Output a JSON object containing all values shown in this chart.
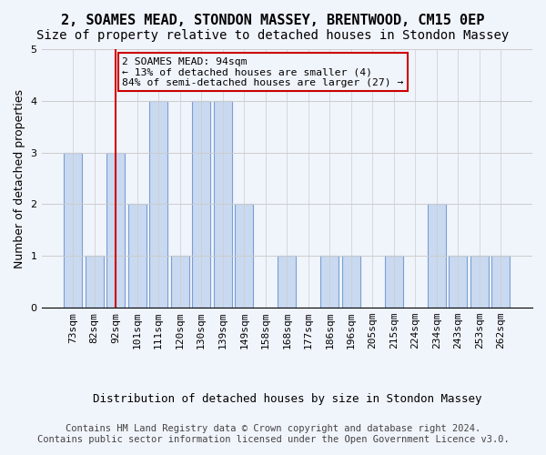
{
  "title1": "2, SOAMES MEAD, STONDON MASSEY, BRENTWOOD, CM15 0EP",
  "title2": "Size of property relative to detached houses in Stondon Massey",
  "xlabel": "Distribution of detached houses by size in Stondon Massey",
  "ylabel": "Number of detached properties",
  "footer1": "Contains HM Land Registry data © Crown copyright and database right 2024.",
  "footer2": "Contains public sector information licensed under the Open Government Licence v3.0.",
  "annotation_line1": "2 SOAMES MEAD: 94sqm",
  "annotation_line2": "← 13% of detached houses are smaller (4)",
  "annotation_line3": "84% of semi-detached houses are larger (27) →",
  "subject_value": 94,
  "categories": [
    "73sqm",
    "82sqm",
    "92sqm",
    "101sqm",
    "111sqm",
    "120sqm",
    "130sqm",
    "139sqm",
    "149sqm",
    "158sqm",
    "168sqm",
    "177sqm",
    "186sqm",
    "196sqm",
    "205sqm",
    "215sqm",
    "224sqm",
    "234sqm",
    "243sqm",
    "253sqm",
    "262sqm"
  ],
  "values": [
    3,
    1,
    3,
    2,
    4,
    1,
    4,
    4,
    2,
    0,
    1,
    0,
    1,
    1,
    0,
    1,
    0,
    2,
    1,
    1,
    1
  ],
  "bar_color": "#c9d9f0",
  "bar_edge_color": "#7a9fd4",
  "highlight_bar_index": 2,
  "highlight_line_color": "#cc0000",
  "annotation_box_color": "#cc0000",
  "ylim": [
    0,
    5
  ],
  "yticks": [
    0,
    1,
    2,
    3,
    4,
    5
  ],
  "grid_color": "#cccccc",
  "bg_color": "#f0f4fb",
  "title1_fontsize": 11,
  "title2_fontsize": 10,
  "axis_label_fontsize": 9,
  "tick_fontsize": 8,
  "footer_fontsize": 7.5
}
